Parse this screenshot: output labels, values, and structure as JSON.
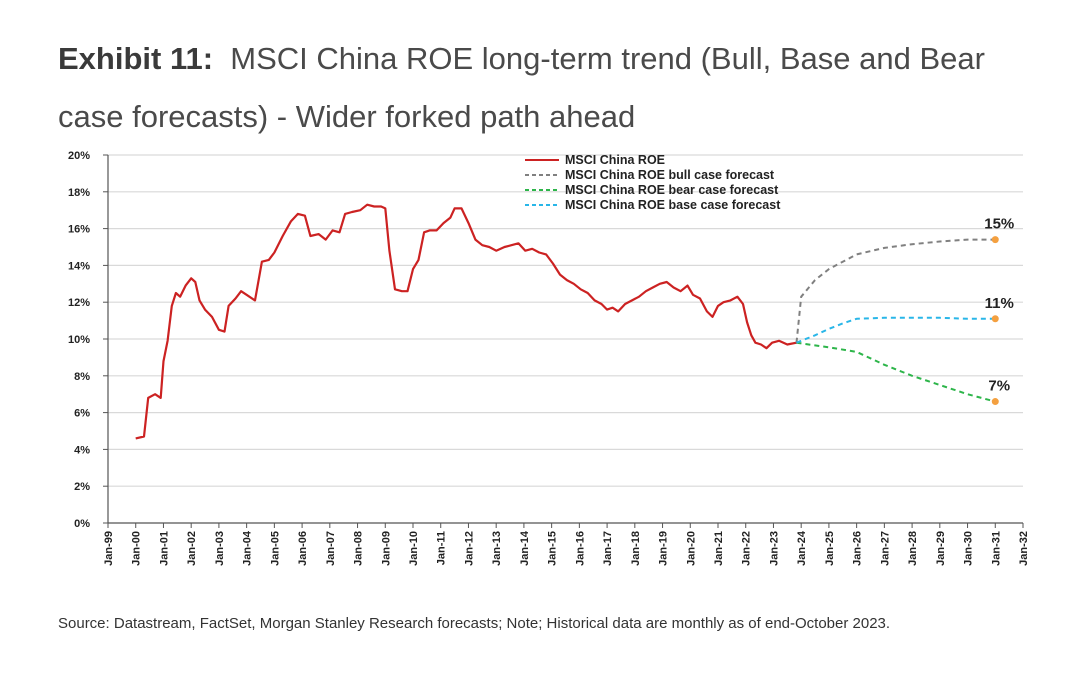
{
  "title": {
    "lead": "Exhibit 11:",
    "text": "MSCI China ROE long-term trend (Bull, Base and Bear case forecasts) - Wider forked path ahead"
  },
  "source": "Source: Datastream, FactSet, Morgan Stanley Research forecasts; Note; Historical data are monthly as of end-October 2023.",
  "colors": {
    "roe": "#cc2222",
    "bull": "#808080",
    "bear": "#2db54a",
    "base": "#29b6e8",
    "endpoint": "#f4a040",
    "grid": "#d9d9d9"
  },
  "chart_data": {
    "type": "line",
    "ylim": [
      0,
      20
    ],
    "yticks": [
      "0%",
      "2%",
      "4%",
      "6%",
      "8%",
      "10%",
      "12%",
      "14%",
      "16%",
      "18%",
      "20%"
    ],
    "xlim": [
      1999.0,
      2032.0
    ],
    "xticks": [
      "Jan-99",
      "Jan-00",
      "Jan-01",
      "Jan-02",
      "Jan-03",
      "Jan-04",
      "Jan-05",
      "Jan-06",
      "Jan-07",
      "Jan-08",
      "Jan-09",
      "Jan-10",
      "Jan-11",
      "Jan-12",
      "Jan-13",
      "Jan-14",
      "Jan-15",
      "Jan-16",
      "Jan-17",
      "Jan-18",
      "Jan-19",
      "Jan-20",
      "Jan-21",
      "Jan-22",
      "Jan-23",
      "Jan-24",
      "Jan-25",
      "Jan-26",
      "Jan-27",
      "Jan-28",
      "Jan-29",
      "Jan-30",
      "Jan-31",
      "Jan-32"
    ],
    "grid": true,
    "legend_position": "top-center",
    "series": [
      {
        "name": "MSCI China ROE",
        "style": "solid",
        "color_key": "roe",
        "points": [
          [
            2000.0,
            4.6
          ],
          [
            2000.3,
            4.7
          ],
          [
            2000.45,
            6.8
          ],
          [
            2000.7,
            7.0
          ],
          [
            2000.9,
            6.8
          ],
          [
            2001.0,
            8.8
          ],
          [
            2001.15,
            9.9
          ],
          [
            2001.3,
            11.8
          ],
          [
            2001.45,
            12.5
          ],
          [
            2001.6,
            12.3
          ],
          [
            2001.8,
            12.9
          ],
          [
            2002.0,
            13.3
          ],
          [
            2002.15,
            13.1
          ],
          [
            2002.3,
            12.1
          ],
          [
            2002.5,
            11.6
          ],
          [
            2002.75,
            11.2
          ],
          [
            2003.0,
            10.5
          ],
          [
            2003.2,
            10.4
          ],
          [
            2003.35,
            11.8
          ],
          [
            2003.6,
            12.2
          ],
          [
            2003.8,
            12.6
          ],
          [
            2004.0,
            12.4
          ],
          [
            2004.3,
            12.1
          ],
          [
            2004.55,
            14.2
          ],
          [
            2004.8,
            14.3
          ],
          [
            2005.0,
            14.7
          ],
          [
            2005.3,
            15.6
          ],
          [
            2005.6,
            16.4
          ],
          [
            2005.85,
            16.8
          ],
          [
            2006.1,
            16.7
          ],
          [
            2006.3,
            15.6
          ],
          [
            2006.6,
            15.7
          ],
          [
            2006.85,
            15.4
          ],
          [
            2007.1,
            15.9
          ],
          [
            2007.35,
            15.8
          ],
          [
            2007.55,
            16.8
          ],
          [
            2007.8,
            16.9
          ],
          [
            2008.1,
            17.0
          ],
          [
            2008.35,
            17.3
          ],
          [
            2008.6,
            17.2
          ],
          [
            2008.85,
            17.2
          ],
          [
            2009.0,
            17.1
          ],
          [
            2009.15,
            14.8
          ],
          [
            2009.35,
            12.7
          ],
          [
            2009.6,
            12.6
          ],
          [
            2009.8,
            12.6
          ],
          [
            2010.0,
            13.8
          ],
          [
            2010.2,
            14.3
          ],
          [
            2010.4,
            15.8
          ],
          [
            2010.6,
            15.9
          ],
          [
            2010.85,
            15.9
          ],
          [
            2011.1,
            16.3
          ],
          [
            2011.35,
            16.6
          ],
          [
            2011.5,
            17.1
          ],
          [
            2011.75,
            17.1
          ],
          [
            2012.0,
            16.3
          ],
          [
            2012.25,
            15.4
          ],
          [
            2012.5,
            15.1
          ],
          [
            2012.75,
            15.0
          ],
          [
            2013.0,
            14.8
          ],
          [
            2013.3,
            15.0
          ],
          [
            2013.55,
            15.1
          ],
          [
            2013.8,
            15.2
          ],
          [
            2014.05,
            14.8
          ],
          [
            2014.3,
            14.9
          ],
          [
            2014.55,
            14.7
          ],
          [
            2014.8,
            14.6
          ],
          [
            2015.05,
            14.1
          ],
          [
            2015.3,
            13.5
          ],
          [
            2015.55,
            13.2
          ],
          [
            2015.8,
            13.0
          ],
          [
            2016.05,
            12.7
          ],
          [
            2016.3,
            12.5
          ],
          [
            2016.55,
            12.1
          ],
          [
            2016.8,
            11.9
          ],
          [
            2017.0,
            11.6
          ],
          [
            2017.2,
            11.7
          ],
          [
            2017.4,
            11.5
          ],
          [
            2017.65,
            11.9
          ],
          [
            2017.9,
            12.1
          ],
          [
            2018.15,
            12.3
          ],
          [
            2018.4,
            12.6
          ],
          [
            2018.65,
            12.8
          ],
          [
            2018.9,
            13.0
          ],
          [
            2019.15,
            13.1
          ],
          [
            2019.4,
            12.8
          ],
          [
            2019.65,
            12.6
          ],
          [
            2019.9,
            12.9
          ],
          [
            2020.1,
            12.4
          ],
          [
            2020.35,
            12.2
          ],
          [
            2020.6,
            11.5
          ],
          [
            2020.8,
            11.2
          ],
          [
            2021.0,
            11.8
          ],
          [
            2021.2,
            12.0
          ],
          [
            2021.45,
            12.1
          ],
          [
            2021.7,
            12.3
          ],
          [
            2021.9,
            11.9
          ],
          [
            2022.05,
            10.9
          ],
          [
            2022.2,
            10.2
          ],
          [
            2022.35,
            9.8
          ],
          [
            2022.55,
            9.7
          ],
          [
            2022.75,
            9.5
          ],
          [
            2022.95,
            9.8
          ],
          [
            2023.2,
            9.9
          ],
          [
            2023.5,
            9.7
          ],
          [
            2023.83,
            9.8
          ]
        ]
      },
      {
        "name": "MSCI China ROE bull case forecast",
        "style": "dashed",
        "color_key": "bull",
        "points": [
          [
            2023.83,
            9.8
          ],
          [
            2024.0,
            12.3
          ],
          [
            2024.5,
            13.2
          ],
          [
            2025.0,
            13.8
          ],
          [
            2026.0,
            14.6
          ],
          [
            2027.0,
            14.95
          ],
          [
            2028.0,
            15.15
          ],
          [
            2029.0,
            15.3
          ],
          [
            2030.0,
            15.4
          ],
          [
            2031.0,
            15.4
          ]
        ]
      },
      {
        "name": "MSCI China ROE bear case forecast",
        "style": "dashed",
        "color_key": "bear",
        "points": [
          [
            2023.83,
            9.8
          ],
          [
            2024.5,
            9.65
          ],
          [
            2025.0,
            9.55
          ],
          [
            2026.0,
            9.3
          ],
          [
            2027.0,
            8.6
          ],
          [
            2028.0,
            8.0
          ],
          [
            2029.0,
            7.5
          ],
          [
            2030.0,
            7.0
          ],
          [
            2031.0,
            6.6
          ]
        ]
      },
      {
        "name": "MSCI China ROE base case forecast",
        "style": "dashed",
        "color_key": "base",
        "points": [
          [
            2023.83,
            9.8
          ],
          [
            2024.5,
            10.2
          ],
          [
            2025.0,
            10.55
          ],
          [
            2025.5,
            10.85
          ],
          [
            2026.0,
            11.1
          ],
          [
            2027.0,
            11.15
          ],
          [
            2028.0,
            11.15
          ],
          [
            2029.0,
            11.15
          ],
          [
            2030.0,
            11.1
          ],
          [
            2031.0,
            11.1
          ]
        ]
      }
    ],
    "endpoints": [
      {
        "x": 2031.0,
        "y": 15.4,
        "label": "15%"
      },
      {
        "x": 2031.0,
        "y": 11.1,
        "label": "11%"
      },
      {
        "x": 2031.0,
        "y": 6.6,
        "label": "7%"
      }
    ]
  }
}
